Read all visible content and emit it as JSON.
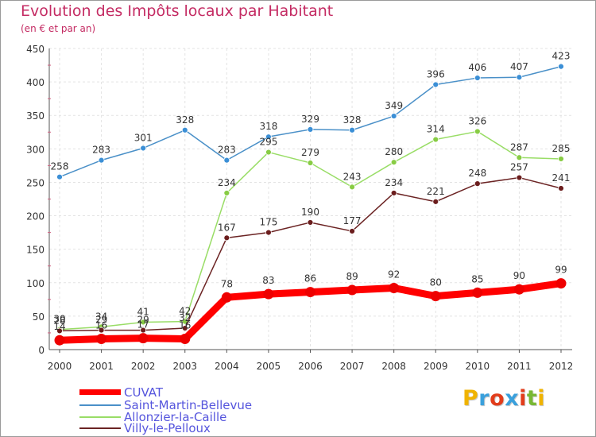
{
  "chart_data": {
    "type": "line",
    "title": "Evolution des Impôts locaux par Habitant",
    "subtitle": "(en € et par an)",
    "xlabel": "",
    "ylabel": "",
    "ylim": [
      0,
      450
    ],
    "yticks": [
      0,
      50,
      100,
      150,
      200,
      250,
      300,
      350,
      400,
      450
    ],
    "categories": [
      "2000",
      "2001",
      "2002",
      "2003",
      "2004",
      "2005",
      "2006",
      "2007",
      "2008",
      "2009",
      "2010",
      "2011",
      "2012"
    ],
    "grid": true,
    "series": [
      {
        "name": "Saint-Martin-Bellevue",
        "color": "#4a90c8",
        "point_color": "#3b8fd6",
        "values": [
          258,
          283,
          301,
          328,
          283,
          318,
          329,
          328,
          349,
          396,
          406,
          407,
          423
        ],
        "labels": [
          "258",
          "283",
          "301",
          "328",
          "283",
          "318",
          "329",
          "328",
          "349",
          "396",
          "406",
          "407",
          "423"
        ]
      },
      {
        "name": "Allonzier-la-Caille",
        "color": "#99dd66",
        "point_color": "#88cc44",
        "values": [
          30,
          34,
          41,
          42,
          234,
          295,
          279,
          243,
          280,
          314,
          326,
          287,
          285
        ],
        "labels": [
          "30",
          "34",
          "41",
          "42",
          "234",
          "295",
          "279",
          "243",
          "280",
          "314",
          "326",
          "287",
          "285"
        ]
      },
      {
        "name": "Villy-le-Pelloux",
        "color": "#6b2323",
        "point_color": "#6b1d1d",
        "values": [
          28,
          29,
          29,
          32,
          167,
          175,
          190,
          177,
          234,
          221,
          248,
          257,
          241
        ],
        "labels": [
          "28",
          "29",
          "29",
          "32",
          "167",
          "175",
          "190",
          "177",
          "234",
          "221",
          "248",
          "257",
          "241"
        ]
      },
      {
        "name": "CUVAT",
        "color": "#ff0000",
        "point_color": "#ee0000",
        "values": [
          14,
          16,
          17,
          16,
          78,
          83,
          86,
          89,
          92,
          80,
          85,
          90,
          99
        ],
        "labels": [
          "14",
          "16",
          "17",
          "16",
          "78",
          "83",
          "86",
          "89",
          "92",
          "80",
          "85",
          "90",
          "99"
        ]
      }
    ],
    "legend": [
      {
        "name": "CUVAT",
        "color": "#ff0000",
        "thick": true
      },
      {
        "name": "Saint-Martin-Bellevue",
        "color": "#4a90c8",
        "thick": false
      },
      {
        "name": "Allonzier-la-Caille",
        "color": "#99dd66",
        "thick": false
      },
      {
        "name": "Villy-le-Pelloux",
        "color": "#6b2323",
        "thick": false
      }
    ]
  },
  "logo": {
    "letters": [
      "P",
      "r",
      "o",
      "x",
      "i",
      "t",
      "i"
    ],
    "colors": [
      "#f0b300",
      "#3aa0dc",
      "#e23d1b",
      "#3aa0dc",
      "#e23d1b",
      "#78b833",
      "#f0b300"
    ]
  }
}
